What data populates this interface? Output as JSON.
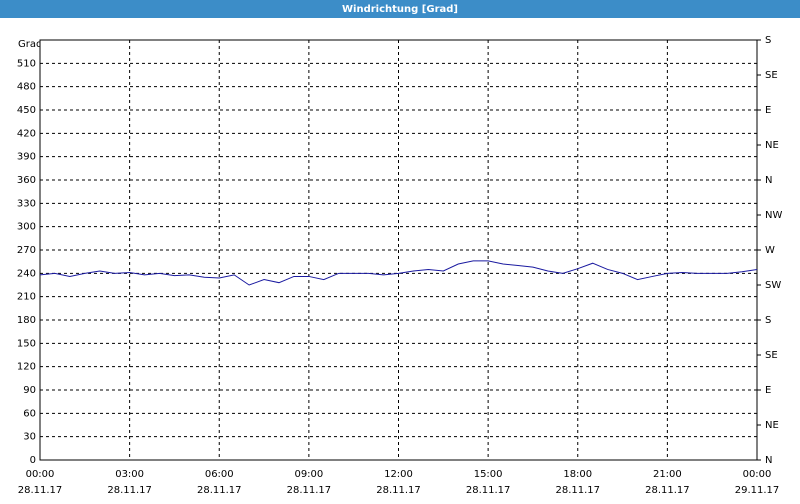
{
  "window_title": "Windrichtung [Grad]",
  "chart_data": {
    "type": "line",
    "y_label": "Grad",
    "x": [
      0,
      0.5,
      1,
      1.5,
      2,
      2.5,
      3,
      3.5,
      4,
      4.5,
      5,
      5.5,
      6,
      6.5,
      7,
      7.5,
      8,
      8.5,
      9,
      9.5,
      10,
      10.5,
      11,
      11.5,
      12,
      12.5,
      13,
      13.5,
      14,
      14.5,
      15,
      15.5,
      16,
      16.5,
      17,
      17.5,
      18,
      18.5,
      19,
      19.5,
      20,
      20.5,
      21,
      21.5,
      22,
      22.5,
      23,
      23.5,
      24
    ],
    "series": [
      {
        "color": "#1a1aa0",
        "values": [
          238,
          240,
          236,
          240,
          243,
          240,
          241,
          238,
          240,
          237,
          238,
          235,
          234,
          238,
          225,
          232,
          228,
          236,
          236,
          232,
          240,
          240,
          240,
          238,
          240,
          243,
          245,
          243,
          252,
          256,
          256,
          252,
          250,
          248,
          243,
          240,
          246,
          253,
          245,
          240,
          232,
          236,
          240,
          241,
          240,
          240,
          240,
          242,
          245
        ]
      }
    ],
    "xlim": [
      0,
      24
    ],
    "xticks": [
      {
        "value": 0,
        "label": "00:00",
        "date": "28.11.17"
      },
      {
        "value": 3,
        "label": "03:00",
        "date": "28.11.17"
      },
      {
        "value": 6,
        "label": "06:00",
        "date": "28.11.17"
      },
      {
        "value": 9,
        "label": "09:00",
        "date": "28.11.17"
      },
      {
        "value": 12,
        "label": "12:00",
        "date": "28.11.17"
      },
      {
        "value": 15,
        "label": "15:00",
        "date": "28.11.17"
      },
      {
        "value": 18,
        "label": "18:00",
        "date": "28.11.17"
      },
      {
        "value": 21,
        "label": "21:00",
        "date": "28.11.17"
      },
      {
        "value": 24,
        "label": "00:00",
        "date": "29.11.17"
      }
    ],
    "ylim": [
      0,
      540
    ],
    "yticks": [
      0,
      30,
      60,
      90,
      120,
      150,
      180,
      210,
      240,
      270,
      300,
      330,
      360,
      390,
      420,
      450,
      480,
      510
    ],
    "y2lim": [
      0,
      540
    ],
    "y2ticks": [
      {
        "value": 0,
        "label": "N"
      },
      {
        "value": 45,
        "label": "NE"
      },
      {
        "value": 90,
        "label": "E"
      },
      {
        "value": 135,
        "label": "SE"
      },
      {
        "value": 180,
        "label": "S"
      },
      {
        "value": 225,
        "label": "SW"
      },
      {
        "value": 270,
        "label": "W"
      },
      {
        "value": 315,
        "label": "NW"
      },
      {
        "value": 360,
        "label": "N"
      },
      {
        "value": 405,
        "label": "NE"
      },
      {
        "value": 450,
        "label": "E"
      },
      {
        "value": 495,
        "label": "SE"
      },
      {
        "value": 540,
        "label": "S"
      }
    ],
    "grid": true
  }
}
